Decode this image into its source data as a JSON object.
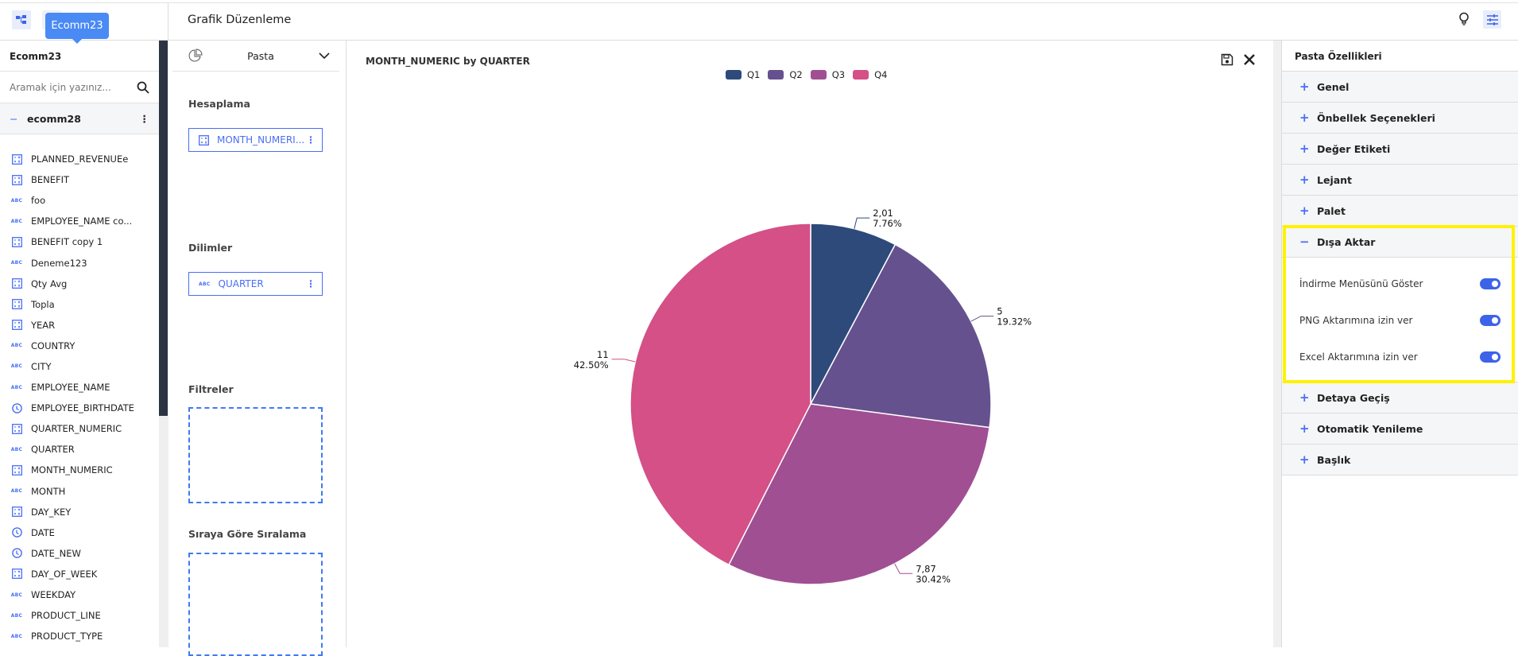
{
  "header": {
    "title": "Grafik Düzenleme",
    "tooltip": "Ecomm23"
  },
  "sidebar": {
    "title": "Ecomm23",
    "search_placeholder": "Aramak için yazınız...",
    "folder": "ecomm28",
    "items": [
      {
        "label": "PLANNED_REVENUEe",
        "type": "measure"
      },
      {
        "label": "BENEFIT",
        "type": "measure"
      },
      {
        "label": "foo",
        "type": "text"
      },
      {
        "label": "EMPLOYEE_NAME co...",
        "type": "text"
      },
      {
        "label": "BENEFIT copy 1",
        "type": "measure"
      },
      {
        "label": "Deneme123",
        "type": "text"
      },
      {
        "label": "Qty Avg",
        "type": "measure"
      },
      {
        "label": "Topla",
        "type": "measure"
      },
      {
        "label": "YEAR",
        "type": "measure"
      },
      {
        "label": "COUNTRY",
        "type": "text"
      },
      {
        "label": "CITY",
        "type": "text"
      },
      {
        "label": "EMPLOYEE_NAME",
        "type": "text"
      },
      {
        "label": "EMPLOYEE_BIRTHDATE",
        "type": "date"
      },
      {
        "label": "QUARTER_NUMERIC",
        "type": "measure"
      },
      {
        "label": "QUARTER",
        "type": "text"
      },
      {
        "label": "MONTH_NUMERIC",
        "type": "measure"
      },
      {
        "label": "MONTH",
        "type": "text"
      },
      {
        "label": "DAY_KEY",
        "type": "measure"
      },
      {
        "label": "DATE",
        "type": "date"
      },
      {
        "label": "DATE_NEW",
        "type": "date"
      },
      {
        "label": "DAY_OF_WEEK",
        "type": "measure"
      },
      {
        "label": "WEEKDAY",
        "type": "text"
      },
      {
        "label": "PRODUCT_LINE",
        "type": "text"
      },
      {
        "label": "PRODUCT_TYPE",
        "type": "text"
      }
    ],
    "abc_glyph": "ABC"
  },
  "config": {
    "chart_type": "Pasta",
    "measure_label": "Hesaplama",
    "measure_field": "MONTH_NUMERI...",
    "slices_label": "Dilimler",
    "slices_field": "QUARTER",
    "filters_label": "Filtreler",
    "sort_label": "Sıraya Göre Sıralama"
  },
  "right_panel": {
    "title": "Pasta Özellikleri",
    "sections_before": [
      "Genel",
      "Önbellek Seçenekleri",
      "Değer Etiketi",
      "Lejant",
      "Palet"
    ],
    "export": {
      "title": "Dışa Aktar",
      "toggles": [
        {
          "label": "İndirme Menüsünü Göster",
          "on": true
        },
        {
          "label": "PNG Aktarımına izin ver",
          "on": true
        },
        {
          "label": "Excel Aktarımına izin ver",
          "on": true
        }
      ]
    },
    "sections_after": [
      "Detaya Geçiş",
      "Otomatik Yenileme",
      "Başlık"
    ]
  },
  "chart_data": {
    "type": "pie",
    "title": "MONTH_NUMERIC by QUARTER",
    "legend_position": "top-right",
    "categories": [
      "Q1",
      "Q2",
      "Q3",
      "Q4"
    ],
    "values": [
      2.01,
      5,
      7.87,
      11
    ],
    "value_labels": [
      "2,01",
      "5",
      "7,87",
      "11"
    ],
    "percent_labels": [
      "7.76%",
      "19.32%",
      "30.42%",
      "42.50%"
    ],
    "percents": [
      7.76,
      19.32,
      30.42,
      42.5
    ],
    "colors": [
      "#2e4a7a",
      "#66518f",
      "#a04f93",
      "#d45086"
    ]
  }
}
